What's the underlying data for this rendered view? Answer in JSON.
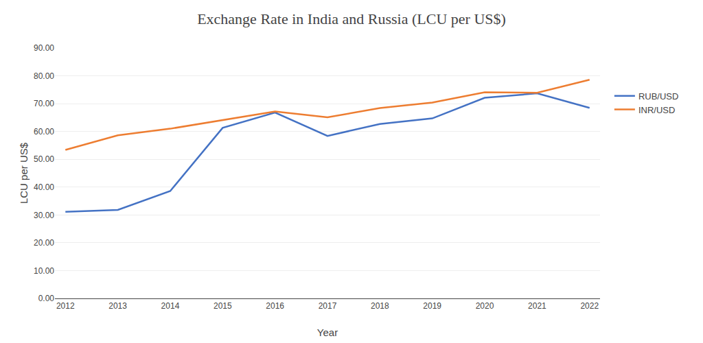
{
  "chart_data": {
    "type": "line",
    "title": "Exchange Rate in India and Russia (LCU per US$)",
    "xlabel": "Year",
    "ylabel": "LCU per US$",
    "x": [
      2012,
      2013,
      2014,
      2015,
      2016,
      2017,
      2018,
      2019,
      2020,
      2021,
      2022
    ],
    "series": [
      {
        "name": "RUB/USD",
        "color": "#4472c4",
        "values": [
          31.1,
          31.8,
          38.6,
          61.3,
          66.8,
          58.4,
          62.7,
          64.7,
          72.1,
          73.7,
          68.5
        ]
      },
      {
        "name": "INR/USD",
        "color": "#ed7d31",
        "values": [
          53.4,
          58.6,
          61.0,
          64.1,
          67.2,
          65.1,
          68.4,
          70.4,
          74.1,
          73.9,
          78.6
        ]
      }
    ],
    "xlim": [
      2011.8,
      2022.2
    ],
    "xticks": [
      2012,
      2013,
      2014,
      2015,
      2016,
      2017,
      2018,
      2019,
      2020,
      2021,
      2022
    ],
    "ylim": [
      0,
      90
    ],
    "yticks": [
      {
        "value": 0,
        "label": "0.00"
      },
      {
        "value": 10,
        "label": "10.00"
      },
      {
        "value": 20,
        "label": "20.00"
      },
      {
        "value": 30,
        "label": "30.00"
      },
      {
        "value": 40,
        "label": "40.00"
      },
      {
        "value": 50,
        "label": "50.00"
      },
      {
        "value": 60,
        "label": "60.00"
      },
      {
        "value": 70,
        "label": "70.00"
      },
      {
        "value": 80,
        "label": "80.00"
      },
      {
        "value": 90,
        "label": "90.00"
      }
    ],
    "grid": true,
    "legend": "right"
  }
}
